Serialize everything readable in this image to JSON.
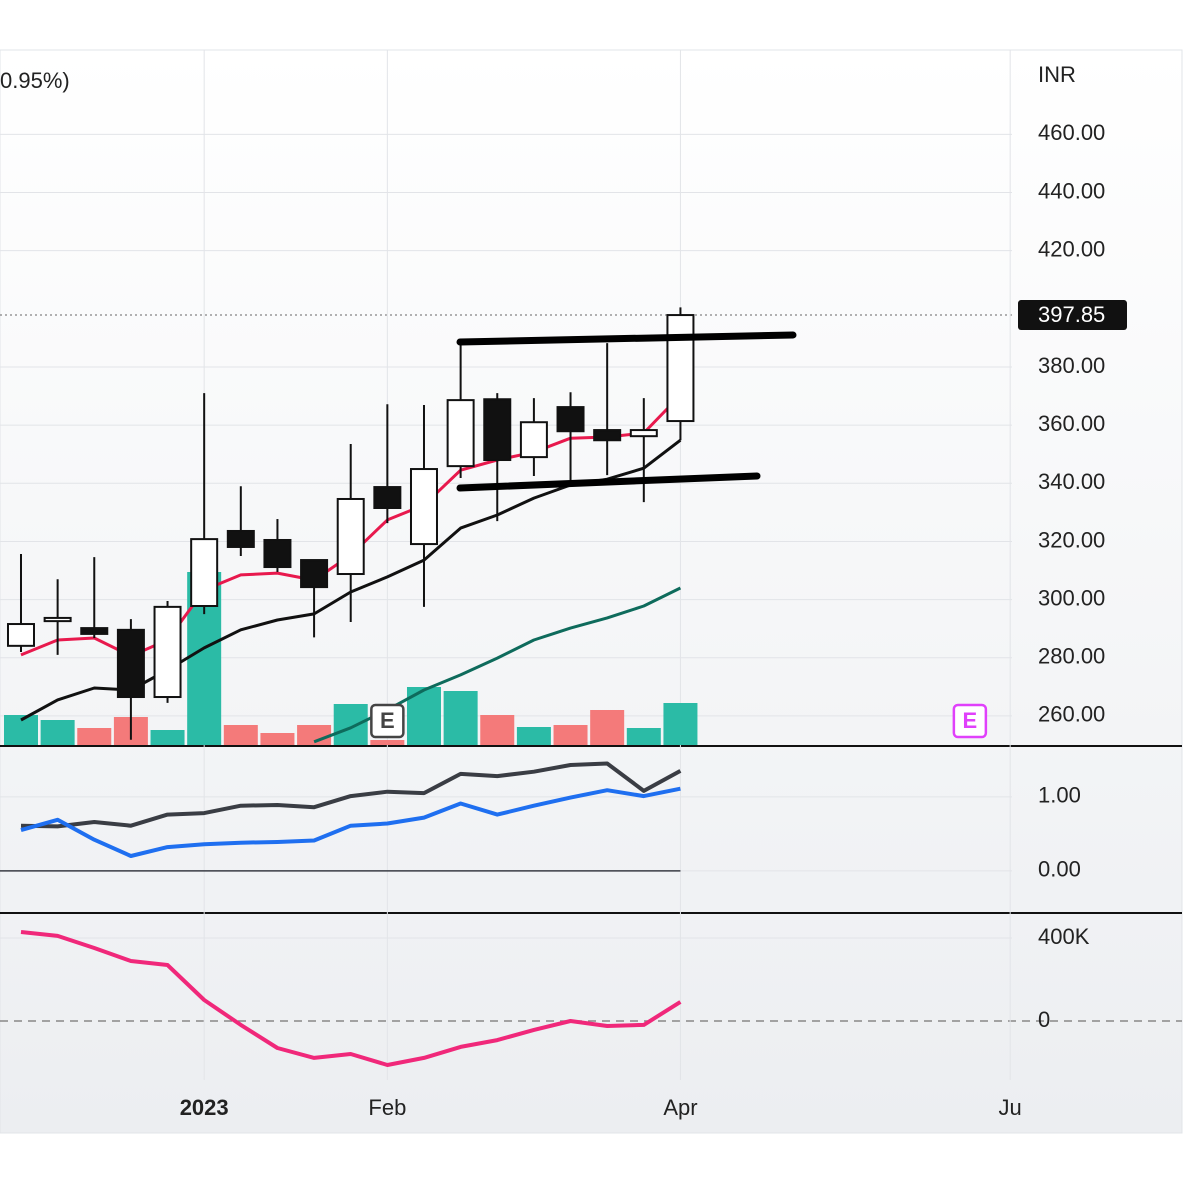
{
  "chart_data": [
    {
      "type": "candlestick",
      "subtitle": "0.95%)",
      "currency": "INR",
      "x": [
        0,
        1,
        2,
        3,
        4,
        5,
        6,
        7,
        8,
        9,
        10,
        11,
        12,
        13,
        14,
        15,
        16,
        17,
        18
      ],
      "open": [
        284.1,
        292.6,
        290.2,
        289.6,
        266.5,
        297.8,
        323.6,
        320.5,
        313.6,
        308.8,
        338.7,
        319.1,
        345.9,
        368.9,
        349.0,
        366.2,
        358.3,
        356.2,
        361.4
      ],
      "high": [
        315.7,
        307.0,
        314.6,
        293.3,
        299.5,
        371.0,
        339.0,
        327.7,
        313.6,
        353.5,
        367.2,
        366.9,
        389.2,
        371.0,
        369.3,
        371.3,
        388.2,
        369.3,
        400.5
      ],
      "low": [
        282.0,
        281.0,
        286.8,
        251.8,
        264.5,
        295.0,
        315.0,
        309.5,
        287.0,
        292.3,
        326.3,
        297.5,
        341.8,
        327.0,
        342.5,
        341.1,
        342.8,
        333.5,
        354.8
      ],
      "close": [
        291.6,
        293.7,
        288.2,
        266.5,
        297.5,
        320.8,
        318.1,
        311.2,
        304.3,
        334.6,
        331.5,
        344.9,
        368.6,
        348.0,
        361.0,
        357.9,
        354.8,
        358.3,
        397.85
      ],
      "volume": [
        30,
        25,
        17,
        28,
        15,
        173,
        20,
        12,
        20,
        41,
        5,
        58,
        54,
        30,
        18,
        20,
        35,
        17,
        42
      ],
      "up_color": "#2bbba6",
      "down_color": "#f47a7a",
      "series": [
        {
          "color": "#e8194d",
          "values": [
            281.0,
            286.1,
            286.8,
            280.6,
            286.1,
            303.3,
            308.5,
            309.1,
            306.7,
            315.3,
            327.4,
            332.5,
            344.5,
            348.0,
            350.7,
            355.5,
            355.9,
            357.3,
            370.3
          ]
        },
        {
          "color": "#111111",
          "values": [
            258.6,
            265.5,
            269.6,
            268.9,
            275.8,
            283.4,
            289.6,
            293.0,
            295.1,
            302.6,
            307.8,
            313.6,
            324.6,
            329.1,
            334.9,
            339.4,
            341.4,
            345.2,
            354.8
          ]
        },
        {
          "color": "#0e6b5c",
          "values": [
            null,
            null,
            null,
            null,
            null,
            null,
            null,
            null,
            251.1,
            255.9,
            262.1,
            268.9,
            274.1,
            279.9,
            286.1,
            290.2,
            293.7,
            297.8,
            304.0
          ]
        }
      ],
      "last_price": 397.85,
      "last_price_label": "397.85",
      "events": [
        {
          "x": 10,
          "label": "E",
          "color": "#444444"
        },
        {
          "x": 25.9,
          "label": "E",
          "color": "#e040fb"
        }
      ],
      "xlim": [
        -0.573,
        27.05
      ],
      "ylim": [
        250,
        489
      ],
      "yticks": [
        {
          "value": 260,
          "label": "260.00"
        },
        {
          "value": 280,
          "label": "280.00"
        },
        {
          "value": 300,
          "label": "300.00"
        },
        {
          "value": 320,
          "label": "320.00"
        },
        {
          "value": 340,
          "label": "340.00"
        },
        {
          "value": 360,
          "label": "360.00"
        },
        {
          "value": 380,
          "label": "380.00"
        },
        {
          "value": 420,
          "label": "420.00"
        },
        {
          "value": 440,
          "label": "440.00"
        },
        {
          "value": 460,
          "label": "460.00"
        }
      ],
      "grid": true
    },
    {
      "type": "line",
      "x": [
        0,
        1,
        2,
        3,
        4,
        5,
        6,
        7,
        8,
        9,
        10,
        11,
        12,
        13,
        14,
        15,
        16,
        17,
        18
      ],
      "series": [
        {
          "color": "#3a3d44",
          "values": [
            0.61,
            0.6,
            0.66,
            0.61,
            0.76,
            0.78,
            0.88,
            0.89,
            0.86,
            1.01,
            1.07,
            1.05,
            1.31,
            1.28,
            1.34,
            1.43,
            1.45,
            1.08,
            1.35
          ]
        },
        {
          "color": "#1f6ff0",
          "values": [
            0.55,
            0.69,
            0.42,
            0.2,
            0.32,
            0.36,
            0.38,
            0.39,
            0.41,
            0.61,
            0.64,
            0.72,
            0.91,
            0.76,
            0.88,
            0.99,
            1.09,
            1.01,
            1.11
          ]
        }
      ],
      "xlim": [
        -0.573,
        27.05
      ],
      "ylim": [
        -0.57,
        1.66
      ],
      "yticks": [
        {
          "value": 0,
          "label": "0.00"
        },
        {
          "value": 1,
          "label": "1.00"
        }
      ],
      "grid": true
    },
    {
      "type": "line",
      "x": [
        0,
        1,
        2,
        3,
        4,
        5,
        6,
        7,
        8,
        9,
        10,
        11,
        12,
        13,
        14,
        15,
        16,
        17,
        18
      ],
      "series": [
        {
          "color": "#f0287a",
          "values": [
            429000,
            410000,
            352000,
            289000,
            270000,
            101000,
            -19000,
            -130000,
            -178000,
            -159000,
            -212000,
            -178000,
            -125000,
            -92000,
            -43000,
            0,
            -24000,
            -19000,
            92000
          ]
        }
      ],
      "xlim": [
        -0.573,
        27.05
      ],
      "ylim": [
        -284300,
        510800
      ],
      "yticks": [
        0,
        {
          "value": 400000,
          "label": "400K"
        }
      ],
      "xticks": [
        {
          "value": 5,
          "label": "2023"
        },
        {
          "value": 10,
          "label": "Feb"
        },
        {
          "value": 18,
          "label": "Apr"
        },
        {
          "value": 27,
          "label": "Ju"
        }
      ],
      "grid": true
    }
  ]
}
